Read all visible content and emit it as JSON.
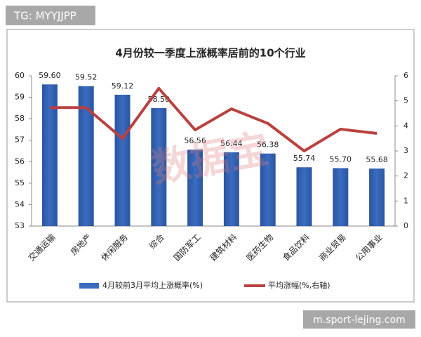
{
  "chart_data": {
    "type": "bar-line",
    "title": "4月份较一季度上涨概率居前的10个行业",
    "categories": [
      "交通运输",
      "房地产",
      "休闲服务",
      "综合",
      "国防军工",
      "建筑材料",
      "医药生物",
      "食品饮料",
      "商业贸易",
      "公用事业"
    ],
    "series": [
      {
        "name": "4月较前3月平均上涨概率(%)",
        "type": "bar",
        "color": "#3a6cc0",
        "axis": "y",
        "values": [
          59.6,
          59.52,
          59.12,
          58.5,
          56.56,
          56.44,
          56.38,
          55.74,
          55.7,
          55.68
        ],
        "value_labels": [
          "59.60",
          "59.52",
          "59.12",
          "58.50",
          "56.56",
          "56.44",
          "56.38",
          "55.74",
          "55.70",
          "55.68"
        ]
      },
      {
        "name": "平均涨幅(%,右轴)",
        "type": "line",
        "color": "#b9413f",
        "axis": "y2",
        "values": [
          4.73,
          4.73,
          3.5,
          5.5,
          3.84,
          4.68,
          4.1,
          3.0,
          3.87,
          3.7
        ]
      }
    ],
    "ylim": [
      53,
      60
    ],
    "yticks": [
      53,
      54,
      55,
      56,
      57,
      58,
      59,
      60
    ],
    "y2lim": [
      0,
      6
    ],
    "y2ticks": [
      0,
      1,
      2,
      3,
      4,
      5,
      6
    ],
    "legend": "bottom",
    "annotations": [
      "TG: MYYJJPP",
      "数据宝",
      "m.sport-lejing.com"
    ]
  }
}
